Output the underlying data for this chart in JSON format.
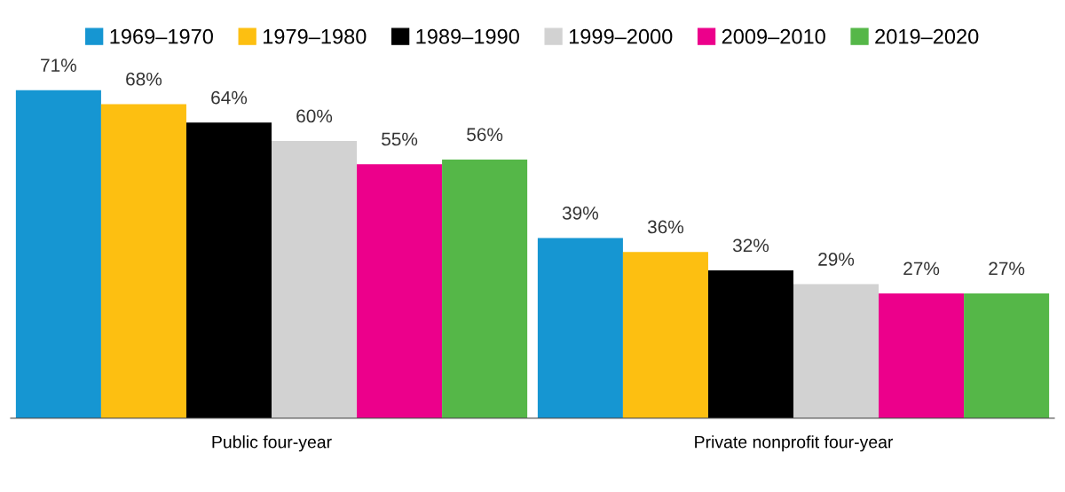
{
  "chart_data": {
    "type": "bar",
    "categories": [
      "Public four-year",
      "Private nonprofit four-year"
    ],
    "series": [
      {
        "name": "1969–1970",
        "color": "#1696d2",
        "values": [
          71,
          39
        ],
        "value_labels": [
          "71%",
          "39%"
        ]
      },
      {
        "name": "1979–1980",
        "color": "#fdbf11",
        "values": [
          68,
          36
        ],
        "value_labels": [
          "68%",
          "36%"
        ]
      },
      {
        "name": "1989–1990",
        "color": "#000000",
        "values": [
          64,
          32
        ],
        "value_labels": [
          "64%",
          "32%"
        ]
      },
      {
        "name": "1999–2000",
        "color": "#d2d2d2",
        "values": [
          60,
          29
        ],
        "value_labels": [
          "60%",
          "29%"
        ]
      },
      {
        "name": "2009–2010",
        "color": "#ec008b",
        "values": [
          55,
          27
        ],
        "value_labels": [
          "55%",
          "27%"
        ]
      },
      {
        "name": "2019–2020",
        "color": "#55b748",
        "values": [
          56,
          27
        ],
        "value_labels": [
          "56%",
          "27%"
        ]
      }
    ],
    "legend": "top",
    "grid": false
  }
}
